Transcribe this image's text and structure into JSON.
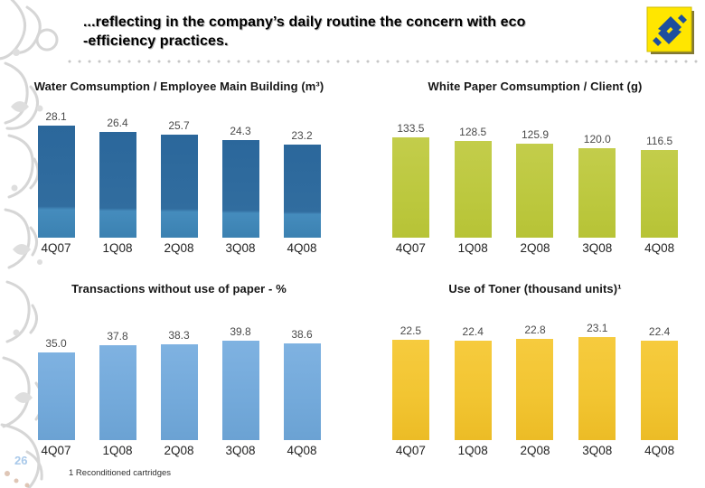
{
  "slide": {
    "title_line1": "...reflecting in the company’s daily routine the concern with eco",
    "title_line2": "-efficiency practices.",
    "page_number": "26",
    "footnote": "1 Reconditioned cartridges",
    "logo": {
      "name": "Banco do Brasil",
      "background": "#ffe600",
      "symbol": "#1d4f9e"
    },
    "ornament_color": "#d6d6d6"
  },
  "chart_data": [
    {
      "type": "bar",
      "title": "Water Comsumption / Employee Main Building (m³)",
      "categories": [
        "4Q07",
        "1Q08",
        "2Q08",
        "3Q08",
        "4Q08"
      ],
      "values": [
        28.1,
        26.4,
        25.7,
        24.3,
        23.2
      ],
      "bar_color": "#31719f",
      "bar_gradient_css": "linear-gradient(180deg,#2b679b 0%,#316d9f 72%,#458cbd 75%,#3b81b1 100%)",
      "ylim": [
        0,
        35
      ],
      "grid": false,
      "legend": null,
      "value_labels": "one-decimal-above-bar"
    },
    {
      "type": "bar",
      "title": "White Paper Comsumption / Client (g)",
      "categories": [
        "4Q07",
        "1Q08",
        "2Q08",
        "3Q08",
        "4Q08"
      ],
      "values": [
        133.5,
        128.5,
        125.9,
        120.0,
        116.5
      ],
      "bar_color": "#bec944",
      "bar_gradient_css": "linear-gradient(180deg,#c3cd4b 0%,#bcc83e 60%,#b7c336 100%)",
      "ylim": [
        0,
        187
      ],
      "grid": false,
      "legend": null,
      "value_labels": "one-decimal-above-bar"
    },
    {
      "type": "bar",
      "title": "Transactions without use of paper - %",
      "categories": [
        "4Q07",
        "1Q08",
        "2Q08",
        "3Q08",
        "4Q08"
      ],
      "values": [
        35.0,
        37.8,
        38.3,
        39.8,
        38.6
      ],
      "bar_color": "#74aadc",
      "bar_gradient_css": "linear-gradient(180deg,#7fb2e1 0%,#73a9da 60%,#6ba2d3 100%)",
      "ylim": [
        0,
        56
      ],
      "grid": false,
      "legend": null,
      "value_labels": "one-decimal-above-bar"
    },
    {
      "type": "bar",
      "title": "Use of Toner (thousand units)¹",
      "categories": [
        "4Q07",
        "1Q08",
        "2Q08",
        "3Q08",
        "4Q08"
      ],
      "values": [
        22.5,
        22.4,
        22.8,
        23.1,
        22.4
      ],
      "bar_color": "#f2c432",
      "bar_gradient_css": "linear-gradient(180deg,#f6cb3e 0%,#f2c532 55%,#ecbc26 100%)",
      "ylim": [
        0,
        31.5
      ],
      "grid": false,
      "legend": null,
      "value_labels": "one-decimal-above-bar"
    }
  ]
}
